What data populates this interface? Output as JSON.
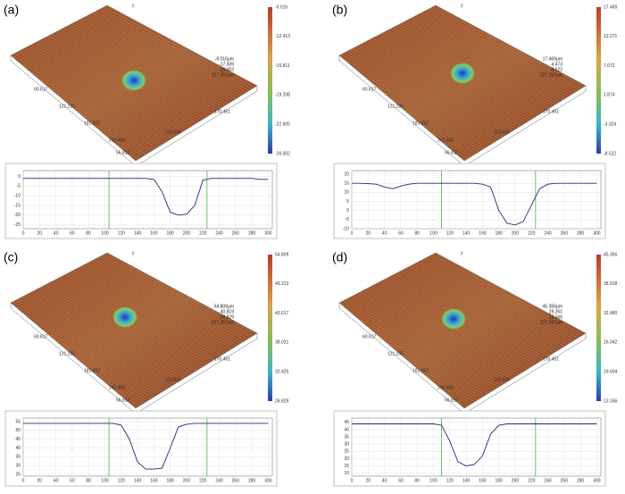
{
  "chart_data": [
    {
      "type": "line",
      "title": "(a)",
      "x": [
        0,
        10,
        20,
        30,
        40,
        50,
        60,
        70,
        80,
        90,
        100,
        110,
        120,
        130,
        140,
        150,
        160,
        170,
        180,
        190,
        200,
        210,
        220,
        230,
        240,
        250,
        260,
        270,
        280,
        290,
        300
      ],
      "values": [
        -1,
        -1,
        -1,
        -1,
        -1,
        -1,
        -1,
        -1,
        -1,
        -1,
        -1,
        -1,
        -1,
        -1,
        -1,
        -1,
        -1.5,
        -8,
        -18.5,
        -20,
        -19.5,
        -15,
        -2,
        -1,
        -1,
        -1,
        -1,
        -1,
        -1,
        -1.5,
        -1.5
      ],
      "xlim": [
        0,
        305
      ],
      "ylim": [
        -27,
        3
      ],
      "xticks": [
        0,
        20,
        40,
        60,
        80,
        100,
        120,
        140,
        160,
        180,
        200,
        220,
        240,
        260,
        280,
        300
      ],
      "yticks": [
        0,
        -5,
        -10,
        -15,
        -20,
        -25
      ],
      "cursors": [
        105,
        225
      ],
      "color": "#1f2a7a",
      "colorbar_ticks": [
        "-9.016",
        "-12.413",
        "-15.811",
        "-19.208",
        "-22.605",
        "-26.002"
      ],
      "annotations": [
        "-9.016μm",
        "-17.509",
        "-26.002",
        "227.267μm"
      ],
      "surface_labels_left": [
        "60.617",
        "121.235",
        "181.852",
        "242.469"
      ],
      "surface_labels_right": [
        "170.451",
        "113.634",
        "56.817"
      ],
      "axis_letter": "y"
    },
    {
      "type": "line",
      "title": "(b)",
      "x": [
        0,
        10,
        20,
        30,
        40,
        50,
        60,
        70,
        80,
        90,
        100,
        110,
        120,
        130,
        140,
        150,
        160,
        170,
        180,
        190,
        200,
        210,
        220,
        230,
        240,
        250,
        260,
        270,
        280,
        290,
        300
      ],
      "values": [
        15,
        15,
        14.8,
        14.5,
        13,
        12,
        13.5,
        14.5,
        15,
        15,
        15,
        15,
        15,
        15,
        15,
        15,
        14.5,
        13,
        0,
        -7,
        -8,
        -6,
        3,
        12,
        14.5,
        15,
        15,
        15,
        15,
        15,
        15
      ],
      "xlim": [
        0,
        305
      ],
      "ylim": [
        -10,
        22
      ],
      "xticks": [
        0,
        20,
        40,
        60,
        80,
        100,
        120,
        140,
        160,
        180,
        200,
        220,
        240,
        260,
        280,
        300
      ],
      "yticks": [
        20,
        15,
        10,
        5,
        0,
        -5,
        -10
      ],
      "cursors": [
        110,
        225
      ],
      "color": "#1f2a7a",
      "colorbar_ticks": [
        "17.469",
        "12.271",
        "7.072",
        "1.874",
        "-3.324",
        "-8.522"
      ],
      "annotations": [
        "17.469μm",
        "4.473",
        "-8.522",
        "227.267μm"
      ],
      "surface_labels_left": [
        "60.617",
        "121.235",
        "181.852",
        "242.469"
      ],
      "surface_labels_right": [
        "170.451",
        "113.634",
        "56.817"
      ],
      "axis_letter": "y"
    },
    {
      "type": "line",
      "title": "(c)",
      "x": [
        0,
        10,
        20,
        30,
        40,
        50,
        60,
        70,
        80,
        90,
        100,
        110,
        120,
        130,
        140,
        150,
        160,
        170,
        180,
        190,
        200,
        210,
        220,
        230,
        240,
        250,
        260,
        270,
        280,
        290,
        300
      ],
      "values": [
        54,
        54,
        54,
        54,
        54,
        54,
        54,
        54,
        54,
        54,
        54,
        54,
        53,
        45,
        32,
        28,
        28,
        28.5,
        40,
        52,
        53.5,
        54,
        54,
        54,
        54,
        54,
        54,
        54,
        54,
        54,
        54
      ],
      "xlim": [
        0,
        305
      ],
      "ylim": [
        24,
        57
      ],
      "xticks": [
        0,
        20,
        40,
        60,
        80,
        100,
        120,
        140,
        160,
        180,
        200,
        220,
        240,
        260,
        280,
        300
      ],
      "yticks": [
        55,
        50,
        45,
        40,
        35,
        30,
        25
      ],
      "cursors": [
        105,
        225
      ],
      "color": "#1f2a7a",
      "colorbar_ticks": [
        "54.809",
        "49.213",
        "43.617",
        "38.021",
        "32.425",
        "26.829"
      ],
      "annotations": [
        "54.809μm",
        "40.819",
        "26.829",
        "227.267μm"
      ],
      "surface_labels_left": [
        "60.617",
        "121.235",
        "181.852",
        "242.469"
      ],
      "surface_labels_right": [
        "170.451",
        "113.634",
        "56.817"
      ],
      "axis_letter": "y"
    },
    {
      "type": "line",
      "title": "(d)",
      "x": [
        0,
        10,
        20,
        30,
        40,
        50,
        60,
        70,
        80,
        90,
        100,
        110,
        120,
        130,
        140,
        150,
        160,
        170,
        180,
        190,
        200,
        210,
        220,
        230,
        240,
        250,
        260,
        270,
        280,
        290,
        300
      ],
      "values": [
        44,
        44,
        44,
        44,
        44,
        44,
        44,
        44,
        44,
        44,
        44,
        43,
        32,
        18,
        15,
        16,
        22,
        37,
        43,
        44,
        44,
        44,
        44,
        44,
        44,
        44,
        44,
        44,
        44,
        44,
        44
      ],
      "xlim": [
        0,
        305
      ],
      "ylim": [
        8,
        48
      ],
      "xticks": [
        0,
        20,
        40,
        60,
        80,
        100,
        120,
        140,
        160,
        180,
        200,
        220,
        240,
        260,
        280,
        300
      ],
      "yticks": [
        45,
        40,
        35,
        30,
        25,
        20,
        15,
        10
      ],
      "cursors": [
        110,
        225
      ],
      "color": "#1f2a7a",
      "colorbar_ticks": [
        "45.356",
        "38.918",
        "32.480",
        "26.042",
        "19.604",
        "13.166"
      ],
      "annotations": [
        "45.356μm",
        "29.261",
        "13.166",
        "227.267μm"
      ],
      "surface_labels_left": [
        "60.617",
        "121.235",
        "181.852",
        "242.469"
      ],
      "surface_labels_right": [
        "170.451",
        "113.634",
        "56.817"
      ],
      "axis_letter": "y"
    }
  ]
}
